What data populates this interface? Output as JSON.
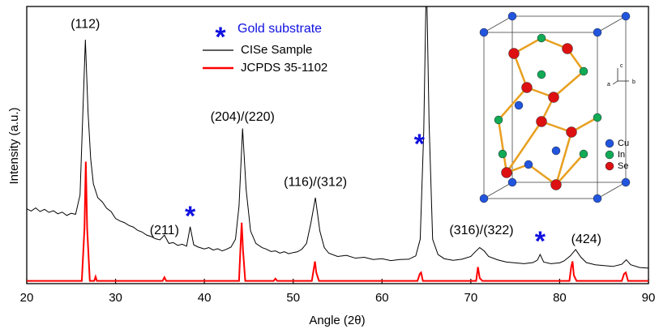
{
  "chart_data": {
    "type": "line",
    "xlabel": "Angle (2θ)",
    "ylabel": "Intensity (a.u.)",
    "xlim": [
      20,
      90
    ],
    "xticks": [
      20,
      30,
      40,
      50,
      60,
      70,
      80,
      90
    ],
    "ylim": [
      0,
      100
    ],
    "series": [
      {
        "name": "CISe Sample",
        "color": "#000000",
        "x": [
          20,
          20.5,
          21,
          21.5,
          22,
          22.5,
          23,
          23.5,
          24,
          24.5,
          25,
          25.5,
          26,
          26.3,
          26.6,
          26.9,
          27.2,
          27.5,
          28,
          28.5,
          29,
          29.5,
          30,
          30.5,
          31,
          31.5,
          32,
          32.5,
          33,
          33.5,
          34,
          34.5,
          35,
          35.5,
          36,
          36.5,
          37,
          37.5,
          38,
          38.4,
          38.8,
          39.3,
          40,
          40.5,
          41,
          41.5,
          42,
          42.5,
          43,
          43.5,
          43.9,
          44.3,
          44.7,
          45.2,
          45.8,
          46.5,
          47,
          47.5,
          48,
          48.5,
          49,
          49.5,
          50,
          50.5,
          51,
          51.5,
          52,
          52.5,
          53,
          53.5,
          54,
          55,
          56,
          57,
          58,
          59,
          60,
          61,
          62,
          63,
          63.8,
          64.3,
          64.7,
          65,
          65.3,
          65.7,
          66.3,
          67,
          68,
          69,
          70,
          70.5,
          71,
          71.5,
          72,
          73,
          74,
          75,
          76,
          77,
          77.5,
          77.8,
          78.2,
          79,
          80,
          80.5,
          81.2,
          81.8,
          82.4,
          83,
          84,
          85,
          86,
          87,
          87.5,
          88,
          89,
          90
        ],
        "values": [
          27,
          26.2,
          27.3,
          26,
          26.8,
          25.7,
          26.3,
          25.2,
          25.8,
          24.6,
          25.4,
          25,
          32,
          60,
          88,
          62,
          45,
          36,
          31,
          29.5,
          27.2,
          26,
          23.5,
          22.6,
          22,
          21,
          20.4,
          19.2,
          18.6,
          17.5,
          17,
          16.2,
          15.8,
          17.5,
          14.5,
          14.8,
          13.8,
          14.2,
          13.5,
          20.5,
          14,
          13.2,
          12.5,
          13,
          12.1,
          12.6,
          11.8,
          12.4,
          13.2,
          16,
          28,
          56,
          34,
          19,
          14.5,
          13,
          12.4,
          11.6,
          11.8,
          11,
          11.5,
          10.8,
          11.2,
          11.5,
          12.5,
          14.5,
          22,
          31,
          19,
          13,
          11,
          9.8,
          10.2,
          9.2,
          9.5,
          8.7,
          9,
          8.3,
          8.7,
          8.8,
          10,
          16,
          55,
          112,
          58,
          16,
          10.5,
          9,
          8.4,
          8.8,
          9.8,
          11.5,
          13,
          11.8,
          9.8,
          8.6,
          7.8,
          7.5,
          7.2,
          7.6,
          8.5,
          10.5,
          7.8,
          7.2,
          7.5,
          8.2,
          10,
          12.3,
          9.5,
          7.6,
          6.8,
          6.5,
          6.2,
          7,
          8.6,
          6.8,
          5.8,
          5.6
        ]
      },
      {
        "name": "JCPDS 35-1102",
        "color": "#ff0000",
        "x": [
          20,
          26.2,
          26.5,
          26.65,
          26.8,
          27.1,
          27.6,
          27.75,
          27.9,
          35.3,
          35.5,
          35.7,
          43.9,
          44.05,
          44.2,
          44.35,
          44.6,
          47.8,
          48,
          48.2,
          52.1,
          52.3,
          52.45,
          52.6,
          52.9,
          64,
          64.25,
          64.4,
          64.6,
          70.6,
          70.8,
          71,
          71.3,
          81.1,
          81.3,
          81.45,
          81.6,
          81.9,
          87,
          87.25,
          87.45,
          87.7,
          90
        ],
        "values": [
          1,
          1,
          20,
          44,
          20,
          1,
          1,
          2.5,
          1,
          1,
          2.3,
          1,
          1,
          12,
          22,
          12,
          1,
          1,
          1.8,
          1,
          1,
          5,
          8,
          4,
          1,
          1,
          3.5,
          4,
          1,
          1,
          6,
          2,
          1,
          1,
          6,
          8,
          3,
          1,
          1,
          3.5,
          4,
          1,
          1
        ]
      }
    ],
    "annotations": [
      {
        "text": "(112)",
        "x": 26.6,
        "y": 93.5
      },
      {
        "text": "(211)",
        "x": 35.5,
        "y": 19
      },
      {
        "text": "(204)/(220)",
        "x": 44.3,
        "y": 60
      },
      {
        "text": "(116)/(312)",
        "x": 52.5,
        "y": 36.5
      },
      {
        "text": "(316)/(322)",
        "x": 71.2,
        "y": 19
      },
      {
        "text": "(424)",
        "x": 83,
        "y": 15.8
      }
    ],
    "markers": [
      {
        "text": "*",
        "x": 38.4,
        "y": 26,
        "color": "#1010e0"
      },
      {
        "text": "*",
        "x": 64.2,
        "y": 52,
        "color": "#1010e0"
      },
      {
        "text": "*",
        "x": 77.8,
        "y": 17,
        "color": "#1010e0"
      }
    ],
    "marker_legend": {
      "symbol": "*",
      "label": "Gold substrate",
      "color": "#1010e0"
    },
    "inset": {
      "axes": [
        "c",
        "a",
        "b"
      ],
      "legend": [
        {
          "label": "Cu",
          "color": "#2255dd"
        },
        {
          "label": "In",
          "color": "#11aa55"
        },
        {
          "label": "Se",
          "color": "#dd1111"
        }
      ]
    }
  }
}
